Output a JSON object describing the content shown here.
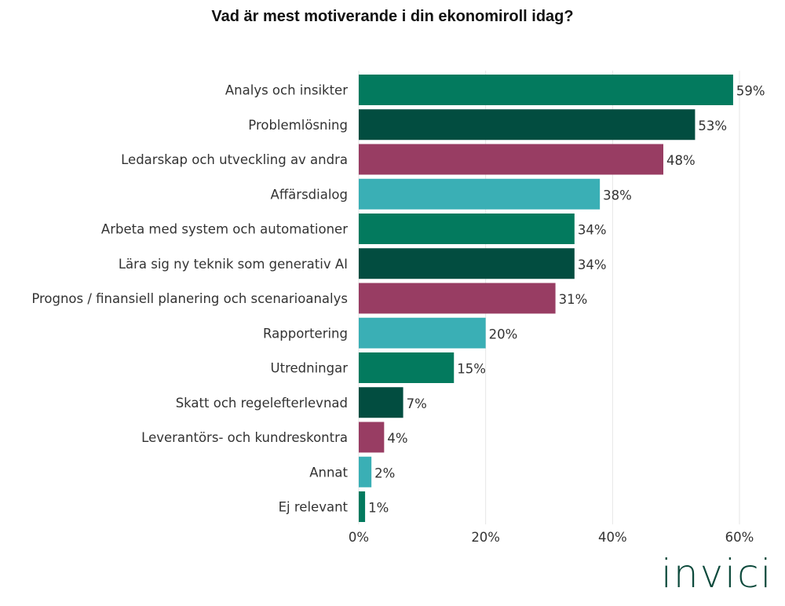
{
  "chart_data": {
    "type": "bar",
    "orientation": "horizontal",
    "title": "Vad är mest motiverande i din ekonomiroll idag?",
    "categories": [
      "Analys och insikter",
      "Problemlösning",
      "Ledarskap och utveckling av andra",
      "Affärsdialog",
      "Arbeta med system och automationer",
      "Lära sig ny teknik som generativ AI",
      "Prognos / finansiell planering och scenarioanalys",
      "Rapportering",
      "Utredningar",
      "Skatt och regelefterlevnad",
      "Leverantörs- och kundreskontra",
      "Annat",
      "Ej relevant"
    ],
    "values": [
      59,
      53,
      48,
      38,
      34,
      34,
      31,
      20,
      15,
      7,
      4,
      2,
      1
    ],
    "value_labels": [
      "59%",
      "53%",
      "48%",
      "38%",
      "34%",
      "34%",
      "31%",
      "20%",
      "15%",
      "7%",
      "4%",
      "2%",
      "1%"
    ],
    "colors": [
      "#037a5e",
      "#024d40",
      "#983d63",
      "#3aafb5",
      "#037a5e",
      "#024d40",
      "#983d63",
      "#3aafb5",
      "#037a5e",
      "#024d40",
      "#983d63",
      "#3aafb5",
      "#037a5e"
    ],
    "xlim": [
      0,
      60
    ],
    "xticks": [
      0,
      20,
      40,
      60
    ],
    "xtick_labels": [
      "0%",
      "20%",
      "40%",
      "60%"
    ],
    "grid": "vertical",
    "xlabel": "",
    "ylabel": ""
  },
  "logo": "invici"
}
